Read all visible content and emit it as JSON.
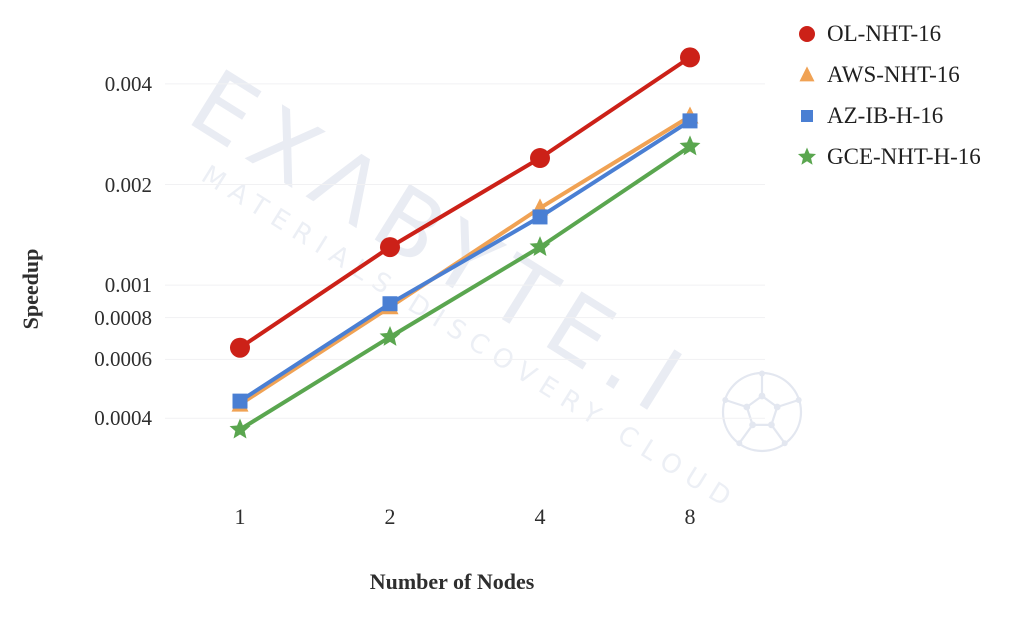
{
  "watermark": {
    "line1": "EXΛBYTE.I",
    "line2": "MATERIALS DISCOVERY CLOUD",
    "text_color": "#e9ecf3",
    "subtext_color": "#eceff5",
    "logo": "wireframe-sphere"
  },
  "chart_data": {
    "type": "line",
    "title": "",
    "xlabel": "Number of Nodes",
    "ylabel": "Speedup",
    "x": [
      1,
      2,
      4,
      8
    ],
    "x_tick_labels": [
      "1",
      "2",
      "4",
      "8"
    ],
    "x_scale": "log2",
    "y_scale": "log10",
    "y_ticks": [
      0.004,
      0.002,
      0.001,
      0.0008,
      0.0006,
      0.0004
    ],
    "y_tick_labels": [
      "0.004",
      "0.002",
      "0.001",
      "0.0008",
      "0.0006",
      "0.0004"
    ],
    "ylim": [
      0.0003,
      0.006
    ],
    "grid": "horizontal",
    "legend_position": "right",
    "series": [
      {
        "name": "OL-NHT-16",
        "marker": "circle",
        "color": "#cc2118",
        "values": [
          0.00065,
          0.0013,
          0.0024,
          0.0048
        ]
      },
      {
        "name": "AWS-NHT-16",
        "marker": "triangle",
        "color": "#f0a254",
        "values": [
          0.00044,
          0.00086,
          0.0017,
          0.0032
        ]
      },
      {
        "name": "AZ-IB-H-16",
        "marker": "square",
        "color": "#4a7fd3",
        "values": [
          0.00045,
          0.00088,
          0.0016,
          0.0031
        ]
      },
      {
        "name": "GCE-NHT-H-16",
        "marker": "star",
        "color": "#5aa64f",
        "values": [
          0.00037,
          0.0007,
          0.0013,
          0.0026
        ]
      }
    ]
  },
  "colors": {
    "grid": "#f1f1f3",
    "axis_text": "#2e2e2e",
    "legend_text": "#1f1f1f"
  }
}
